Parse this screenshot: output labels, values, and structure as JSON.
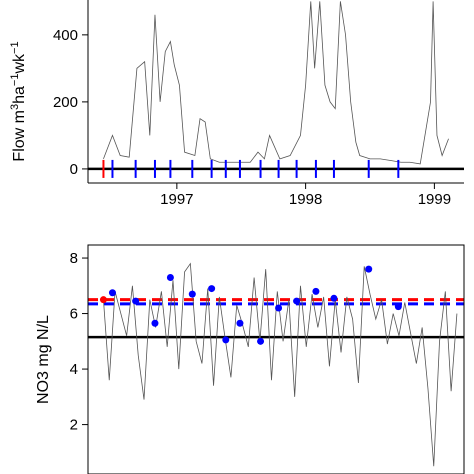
{
  "chart_data": [
    {
      "type": "line",
      "ylabel_parts": [
        "Flow m",
        "3",
        "ha",
        "−1",
        "wk",
        "−1"
      ],
      "xlim": [
        1996.31,
        1999.23
      ],
      "xticks": [
        1997,
        1998,
        1999
      ],
      "ylim": [
        -42,
        504
      ],
      "yticks": [
        0,
        200,
        400
      ],
      "x": [
        1996.43,
        1996.5,
        1996.56,
        1996.63,
        1996.69,
        1996.75,
        1996.79,
        1996.83,
        1996.87,
        1996.91,
        1996.95,
        1996.98,
        1997.02,
        1997.06,
        1997.14,
        1997.18,
        1997.22,
        1997.26,
        1997.33,
        1997.41,
        1997.57,
        1997.63,
        1997.68,
        1997.72,
        1997.8,
        1997.88,
        1997.96,
        1998.0,
        1998.04,
        1998.07,
        1998.11,
        1998.15,
        1998.19,
        1998.23,
        1998.27,
        1998.31,
        1998.35,
        1998.39,
        1998.42,
        1998.5,
        1998.58,
        1998.66,
        1998.74,
        1998.81,
        1998.89,
        1998.97,
        1998.99,
        1999.02,
        1999.06,
        1999.11
      ],
      "series": [
        {
          "color": "#555555",
          "values": [
            30,
            100,
            40,
            35,
            300,
            320,
            100,
            460,
            200,
            350,
            380,
            310,
            250,
            50,
            40,
            150,
            140,
            30,
            20,
            20,
            20,
            50,
            30,
            100,
            30,
            40,
            100,
            250,
            500,
            300,
            500,
            250,
            200,
            180,
            500,
            400,
            200,
            80,
            40,
            30,
            30,
            25,
            20,
            20,
            15,
            200,
            500,
            100,
            40,
            90
          ]
        }
      ],
      "hlines": [
        {
          "value": 0,
          "color": "#000000",
          "dash": false
        }
      ],
      "markers": {
        "x": [
          1996.43,
          1996.5,
          1996.68,
          1996.83,
          1996.95,
          1997.12,
          1997.27,
          1997.38,
          1997.49,
          1997.65,
          1997.79,
          1997.93,
          1998.08,
          1998.22,
          1998.49,
          1998.72
        ],
        "colors": [
          "#ff0000",
          "#0000ff",
          "#0000ff",
          "#0000ff",
          "#0000ff",
          "#0000ff",
          "#0000ff",
          "#0000ff",
          "#0000ff",
          "#0000ff",
          "#0000ff",
          "#0000ff",
          "#0000ff",
          "#0000ff",
          "#0000ff",
          "#0000ff"
        ]
      }
    },
    {
      "type": "line",
      "ylabel": "NO3 mg N/L",
      "box": true,
      "xlim": [
        1996.31,
        1999.23
      ],
      "ylim": [
        0.22,
        8.47
      ],
      "yticks": [
        2,
        4,
        6,
        8
      ],
      "x": [
        1996.43,
        1996.475,
        1996.52,
        1996.565,
        1996.61,
        1996.655,
        1996.7,
        1996.745,
        1996.79,
        1996.835,
        1996.88,
        1996.925,
        1996.97,
        1997.015,
        1997.06,
        1997.105,
        1997.15,
        1997.195,
        1997.24,
        1997.285,
        1997.33,
        1997.375,
        1997.42,
        1997.465,
        1997.51,
        1997.555,
        1997.6,
        1997.645,
        1997.69,
        1997.735,
        1997.78,
        1997.825,
        1997.87,
        1997.915,
        1997.96,
        1998.005,
        1998.05,
        1998.095,
        1998.14,
        1998.185,
        1998.23,
        1998.275,
        1998.32,
        1998.365,
        1998.41,
        1998.455,
        1998.5,
        1998.545,
        1998.59,
        1998.635,
        1998.68,
        1998.725,
        1998.77,
        1998.815,
        1998.86,
        1998.905,
        1998.95,
        1998.995,
        1999.04,
        1999.085,
        1999.13,
        1999.175
      ],
      "series": [
        {
          "color": "#555555",
          "values": [
            6.5,
            3.6,
            6.8,
            6.0,
            5.2,
            7.0,
            4.5,
            2.9,
            6.5,
            5.5,
            6.8,
            4.8,
            7.2,
            4.0,
            7.5,
            7.8,
            5.0,
            4.2,
            6.9,
            3.4,
            6.6,
            5.1,
            3.7,
            6.3,
            5.6,
            4.8,
            7.3,
            5.0,
            7.6,
            3.6,
            6.8,
            5.0,
            6.5,
            3.0,
            7.0,
            4.8,
            6.7,
            5.5,
            6.6,
            4.1,
            6.5,
            4.6,
            6.6,
            5.8,
            3.5,
            7.7,
            6.7,
            5.8,
            6.5,
            4.9,
            6.0,
            5.2,
            6.4,
            5.3,
            4.2,
            5.5,
            3.3,
            0.5,
            5.0,
            6.8,
            3.2,
            6.0
          ]
        }
      ],
      "points": {
        "x": [
          1996.43,
          1996.5,
          1996.68,
          1996.83,
          1996.95,
          1997.12,
          1997.27,
          1997.38,
          1997.49,
          1997.65,
          1997.79,
          1997.93,
          1998.08,
          1998.22,
          1998.49,
          1998.72
        ],
        "values": [
          6.5,
          6.75,
          6.45,
          5.65,
          7.3,
          6.7,
          6.9,
          5.05,
          5.65,
          5.0,
          6.2,
          6.45,
          6.8,
          6.55,
          7.6,
          6.25
        ],
        "colors": [
          "#ff0000",
          "#0000ff",
          "#0000ff",
          "#0000ff",
          "#0000ff",
          "#0000ff",
          "#0000ff",
          "#0000ff",
          "#0000ff",
          "#0000ff",
          "#0000ff",
          "#0000ff",
          "#0000ff",
          "#0000ff",
          "#0000ff",
          "#0000ff"
        ]
      },
      "hlines": [
        {
          "value": 5.15,
          "color": "#000000",
          "dash": false
        },
        {
          "value": 6.5,
          "color": "#ff0000",
          "dash": true
        },
        {
          "value": 6.35,
          "color": "#0000ff",
          "dash": true
        }
      ]
    }
  ]
}
